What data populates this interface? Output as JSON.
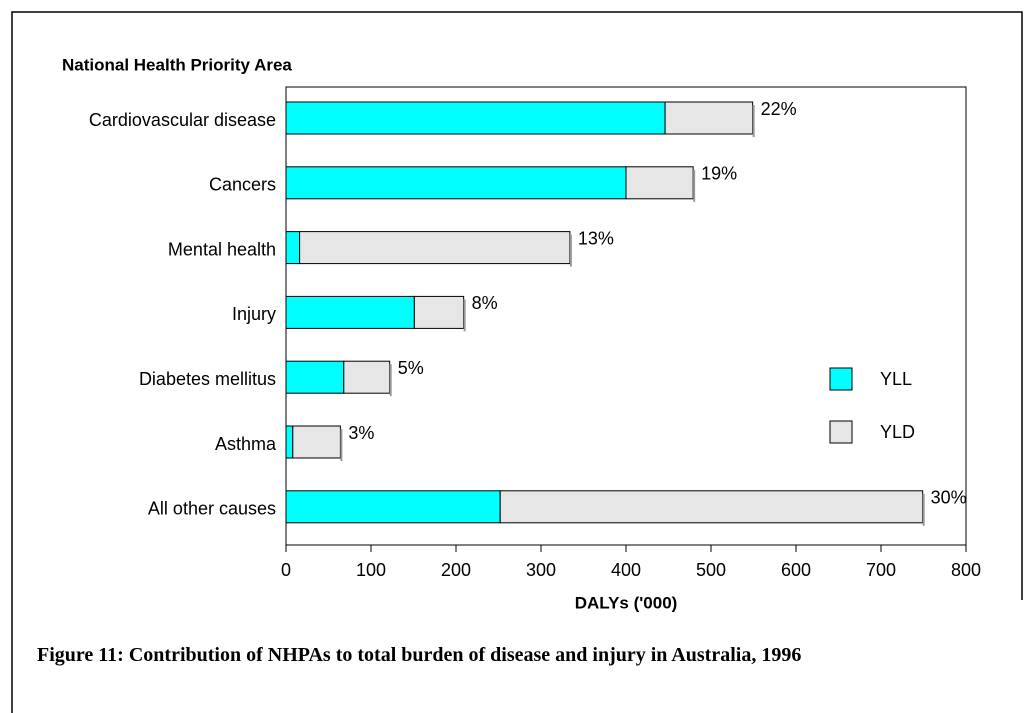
{
  "chart_data": {
    "type": "stacked_barh",
    "title": "National Health Priority Area",
    "xlabel": "DALYs ('000)",
    "caption": "Figure 11: Contribution of NHPAs to total burden of disease and injury in Australia, 1996",
    "categories": [
      "Cardiovascular disease",
      "Cancers",
      "Mental health",
      "Injury",
      "Diabetes mellitus",
      "Asthma",
      "All other causes"
    ],
    "series": [
      {
        "name": "YLL",
        "color": "#00ffff",
        "values": [
          446,
          400,
          16,
          151,
          68,
          8,
          252
        ]
      },
      {
        "name": "YLD",
        "color": "#e6e6e6",
        "values": [
          103,
          79,
          318,
          58,
          54,
          56,
          497
        ]
      }
    ],
    "shares": {
      "values": [
        22,
        19,
        13,
        8,
        5,
        3,
        30
      ],
      "value_labels": [
        "22%",
        "19%",
        "13%",
        "8%",
        "5%",
        "3%",
        "30%"
      ]
    },
    "xlim": [
      0,
      800
    ],
    "xticks": [
      0,
      100,
      200,
      300,
      400,
      500,
      600,
      700,
      800
    ],
    "legend": "right"
  }
}
